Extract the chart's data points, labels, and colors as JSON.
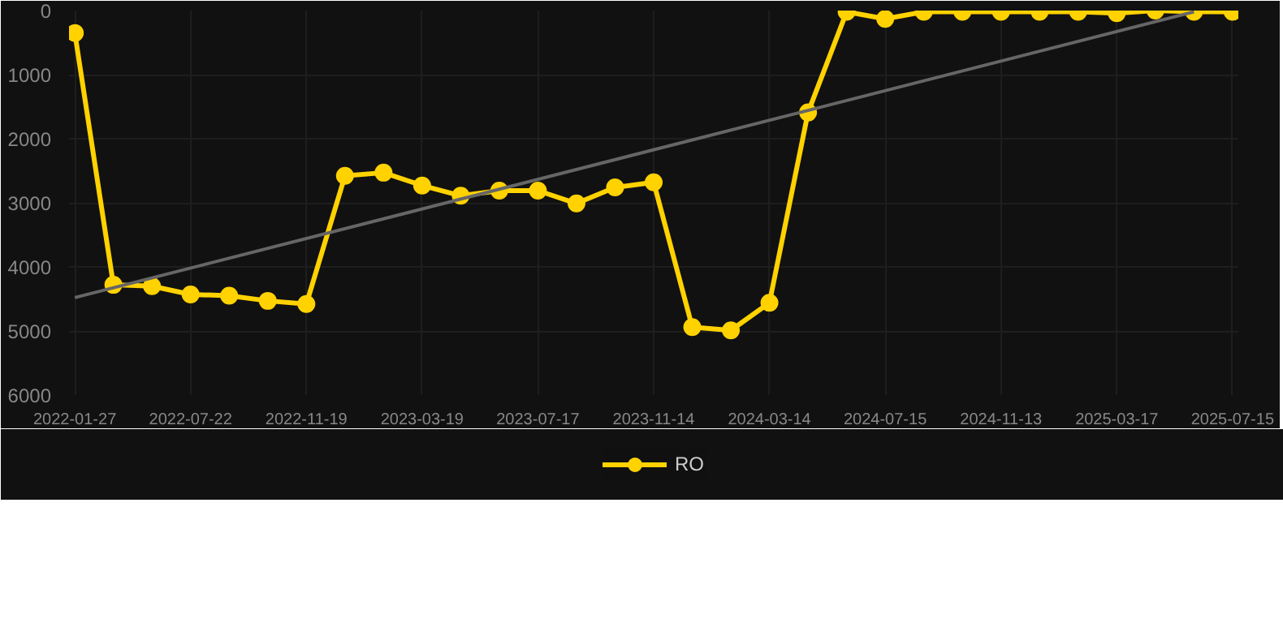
{
  "chart_data": {
    "type": "line",
    "categories": [
      "2022-01-27",
      null,
      null,
      "2022-07-22",
      null,
      null,
      "2022-11-19",
      null,
      null,
      "2023-03-19",
      null,
      null,
      "2023-07-17",
      null,
      null,
      "2023-11-14",
      null,
      null,
      "2024-03-14",
      null,
      null,
      "2024-07-15",
      null,
      null,
      "2024-11-13",
      null,
      null,
      "2025-03-17",
      null,
      null,
      "2025-07-15"
    ],
    "series": [
      {
        "name": "RO",
        "color": "#ffd200",
        "values": [
          350,
          4280,
          4300,
          4430,
          4450,
          4530,
          4580,
          2580,
          2530,
          2730,
          2890,
          2810,
          2810,
          3010,
          2760,
          2680,
          4940,
          4990,
          4560,
          1590,
          20,
          130,
          20,
          20,
          20,
          20,
          20,
          40,
          0,
          20,
          20
        ]
      },
      {
        "type": "line",
        "color": "#666666",
        "values": [
          4480,
          null,
          null,
          null,
          null,
          null,
          null,
          null,
          null,
          null,
          null,
          null,
          null,
          null,
          null,
          null,
          null,
          null,
          null,
          null,
          null,
          null,
          null,
          null,
          null,
          null,
          null,
          null,
          null,
          20,
          null
        ],
        "marker": "none"
      }
    ],
    "ylim": [
      6000,
      0
    ],
    "yticks": [
      0,
      1000,
      2000,
      3000,
      4000,
      5000,
      6000
    ],
    "grid": true,
    "legend": "bottom",
    "marker": "circle",
    "line_style": "solid"
  }
}
